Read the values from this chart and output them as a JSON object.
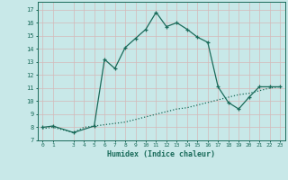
{
  "title": "",
  "xlabel": "Humidex (Indice chaleur)",
  "bg_color": "#c8e8e8",
  "grid_color": "#d4b8b8",
  "line_color": "#1a6b5a",
  "xlim": [
    -0.5,
    23.5
  ],
  "ylim": [
    7,
    17.6
  ],
  "xticks": [
    0,
    1,
    3,
    4,
    5,
    6,
    7,
    8,
    9,
    10,
    11,
    12,
    13,
    14,
    15,
    16,
    17,
    18,
    19,
    20,
    21,
    22,
    23
  ],
  "yticks": [
    7,
    8,
    9,
    10,
    11,
    12,
    13,
    14,
    15,
    16,
    17
  ],
  "curve1_x": [
    0,
    1,
    3,
    5,
    6,
    7,
    8,
    9,
    10,
    11,
    12,
    13,
    14,
    15,
    16,
    17,
    18,
    19,
    20,
    21,
    22,
    23
  ],
  "curve1_y": [
    8.0,
    8.1,
    7.6,
    8.1,
    13.2,
    12.5,
    14.1,
    14.8,
    15.5,
    16.8,
    15.7,
    16.0,
    15.5,
    14.9,
    14.5,
    11.1,
    9.9,
    9.4,
    10.3,
    11.1,
    11.1,
    11.1
  ],
  "curve2_x": [
    0,
    1,
    3,
    4,
    5,
    6,
    7,
    8,
    9,
    10,
    11,
    12,
    13,
    14,
    15,
    16,
    17,
    18,
    19,
    20,
    21,
    22,
    23
  ],
  "curve2_y": [
    7.9,
    8.0,
    7.6,
    8.0,
    8.1,
    8.2,
    8.3,
    8.4,
    8.6,
    8.8,
    9.0,
    9.2,
    9.4,
    9.5,
    9.7,
    9.9,
    10.1,
    10.3,
    10.5,
    10.6,
    10.8,
    11.0,
    11.1
  ]
}
